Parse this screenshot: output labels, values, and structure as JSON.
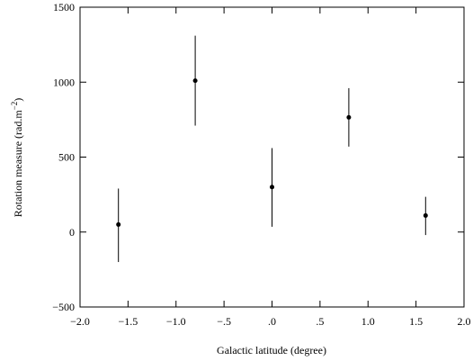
{
  "chart_data": {
    "type": "scatter",
    "title": "",
    "xlabel": "Galactic latitude (degree)",
    "ylabel": "Rotation measure (rad.m",
    "ylabel_exponent": "−2",
    "ylabel_close": ")",
    "xlim": [
      -2.0,
      2.0
    ],
    "ylim": [
      -500,
      1500
    ],
    "grid": false,
    "x_ticks": [
      -2.0,
      -1.5,
      -1.0,
      -0.5,
      0.0,
      0.5,
      1.0,
      1.5,
      2.0
    ],
    "x_tick_labels": [
      "−2.0",
      "−1.5",
      "−1.0",
      "−.5",
      ".0",
      ".5",
      "1.0",
      "1.5",
      "2.0"
    ],
    "y_ticks": [
      -500,
      0,
      500,
      1000,
      1500
    ],
    "y_tick_labels": [
      "−500",
      "0",
      "500",
      "1000",
      "1500"
    ],
    "series": [
      {
        "points": [
          {
            "x": -1.6,
            "y": 50,
            "err_low": -200,
            "err_high": 290
          },
          {
            "x": -0.8,
            "y": 1010,
            "err_low": 710,
            "err_high": 1310
          },
          {
            "x": 0.0,
            "y": 300,
            "err_low": 35,
            "err_high": 560
          },
          {
            "x": 0.8,
            "y": 765,
            "err_low": 570,
            "err_high": 960
          },
          {
            "x": 1.6,
            "y": 110,
            "err_low": -20,
            "err_high": 235
          }
        ]
      }
    ]
  }
}
